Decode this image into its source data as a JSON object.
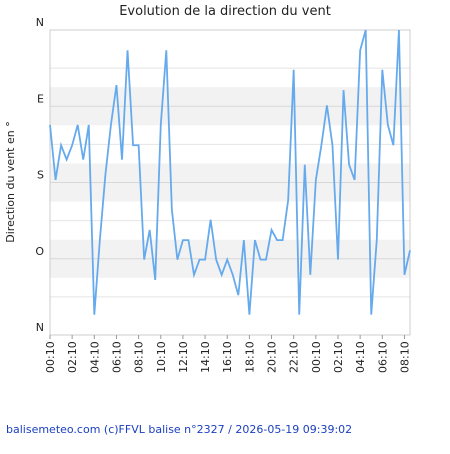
{
  "chart_data": {
    "type": "line",
    "title": "Evolution de la direction du vent",
    "ylabel": "Direction du vent en °",
    "footer": "balisemeteo.com (c)FFVL balise n°2327 / 2026-05-19 09:39:02",
    "categories": [
      "00:10",
      null,
      null,
      null,
      "02:10",
      null,
      null,
      null,
      "04:10",
      null,
      null,
      null,
      "06:10",
      null,
      null,
      null,
      "08:10",
      null,
      null,
      null,
      "10:10",
      null,
      null,
      null,
      "12:10",
      null,
      null,
      null,
      "14:10",
      null,
      null,
      null,
      "16:10",
      null,
      null,
      null,
      "18:10",
      null,
      null,
      null,
      "20:10",
      null,
      null,
      null,
      "22:10",
      null,
      null,
      null,
      "00:10",
      null,
      null,
      null,
      "02:10",
      null,
      null,
      null,
      "04:10",
      null,
      null,
      null,
      "06:10",
      null,
      null,
      null,
      "08:10",
      null
    ],
    "series": [
      {
        "color": "#66aaee",
        "values": [
          112,
          177,
          136,
          153,
          136,
          112,
          153,
          112,
          336,
          248,
          171,
          112,
          65,
          153,
          24,
          136,
          136,
          271,
          236,
          295,
          112,
          24,
          212,
          271,
          248,
          248,
          289,
          271,
          271,
          224,
          271,
          289,
          271,
          289,
          313,
          248,
          336,
          248,
          271,
          271,
          236,
          248,
          248,
          201,
          47,
          336,
          159,
          289,
          177,
          136,
          89,
          136,
          271,
          71,
          159,
          177,
          24,
          0,
          336,
          248,
          47,
          112,
          136,
          0,
          289,
          260
        ]
      }
    ],
    "ylim": [
      360,
      0
    ],
    "yticks": [
      {
        "value": 0,
        "label": "N"
      },
      {
        "value": 90,
        "label": "E"
      },
      {
        "value": 180,
        "label": "S"
      },
      {
        "value": 270,
        "label": "O"
      },
      {
        "value": 360,
        "label": "N"
      }
    ],
    "grid": true
  }
}
